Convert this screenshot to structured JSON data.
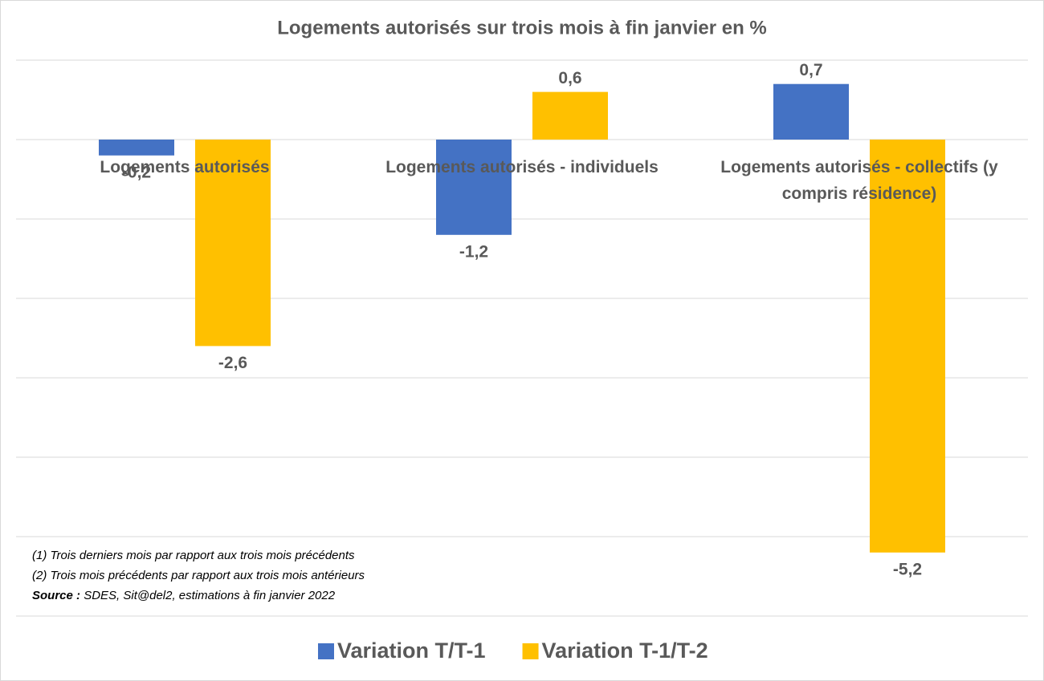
{
  "chart_data": {
    "type": "bar",
    "title": "Logements autorisés sur trois mois à fin janvier en %",
    "categories": [
      "Logements autorisés",
      "Logements autorisés - individuels",
      "Logements autorisés - collectifs (y compris résidence)"
    ],
    "series": [
      {
        "name": "Variation T/T-1",
        "color": "#4472c4",
        "values": [
          -0.2,
          -1.2,
          0.7
        ],
        "value_labels": [
          "-0,2",
          "-1,2",
          "0,7"
        ]
      },
      {
        "name": "Variation T-1/T-2",
        "color": "#ffc000",
        "values": [
          -2.6,
          0.6,
          -5.2
        ],
        "value_labels": [
          "-2,6",
          "0,6",
          "-5,2"
        ]
      }
    ],
    "ylim": [
      -6,
      1
    ],
    "yticks": [
      -6,
      -5,
      -4,
      -3,
      -2,
      -1,
      0,
      1
    ],
    "grid": true,
    "notes": [
      "(1) Trois derniers mois par rapport aux trois mois précédents",
      "(2) Trois mois précédents par rapport aux trois mois antérieurs"
    ],
    "source_label": "Source :",
    "source": "SDES, Sit@del2, estimations à fin janvier 2022"
  }
}
